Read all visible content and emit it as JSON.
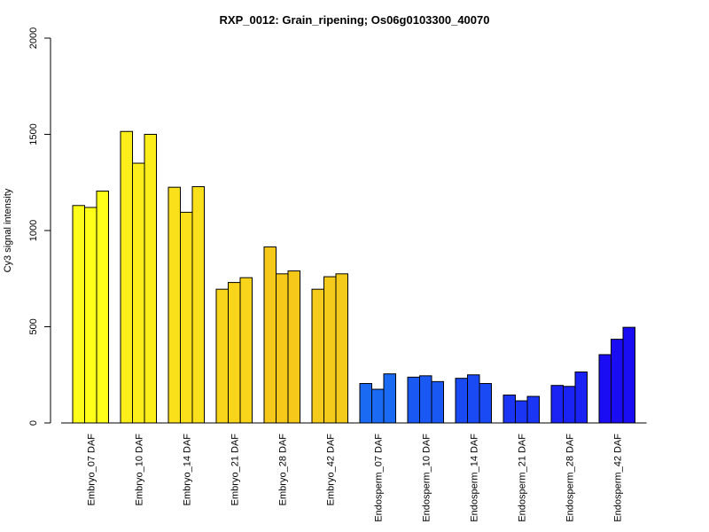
{
  "chart_data": {
    "type": "bar",
    "title": "RXP_0012: Grain_ripening; Os06g0103300_40070",
    "xlabel": "",
    "ylabel": "Cy3 signal intensity",
    "ylim": [
      0,
      2000
    ],
    "yticks": [
      0,
      500,
      1000,
      1500,
      2000
    ],
    "grid": false,
    "categories": [
      "Embryo_07 DAF",
      "Embryo_10 DAF",
      "Embryo_14 DAF",
      "Embryo_21 DAF",
      "Embryo_28 DAF",
      "Embryo_42 DAF",
      "Endosperm_07 DAF",
      "Endosperm_10 DAF",
      "Endosperm_14 DAF",
      "Endosperm_21 DAF",
      "Endosperm_28 DAF",
      "Endosperm_42 DAF"
    ],
    "values": [
      [
        1130,
        1120,
        1205
      ],
      [
        1515,
        1350,
        1500
      ],
      [
        1225,
        1095,
        1228
      ],
      [
        695,
        730,
        755
      ],
      [
        915,
        775,
        790
      ],
      [
        695,
        760,
        775
      ],
      [
        205,
        175,
        255
      ],
      [
        238,
        245,
        215
      ],
      [
        232,
        250,
        205
      ],
      [
        145,
        115,
        138
      ],
      [
        195,
        190,
        265
      ],
      [
        355,
        435,
        497
      ]
    ],
    "colors": [
      "#ffff1a",
      "#fbee1a",
      "#fae01a",
      "#f8d41a",
      "#f6c81a",
      "#f4cb1a",
      "#1a6af4",
      "#1a58f4",
      "#1a4af4",
      "#1a35f4",
      "#1a22f4",
      "#1a0df4"
    ]
  }
}
